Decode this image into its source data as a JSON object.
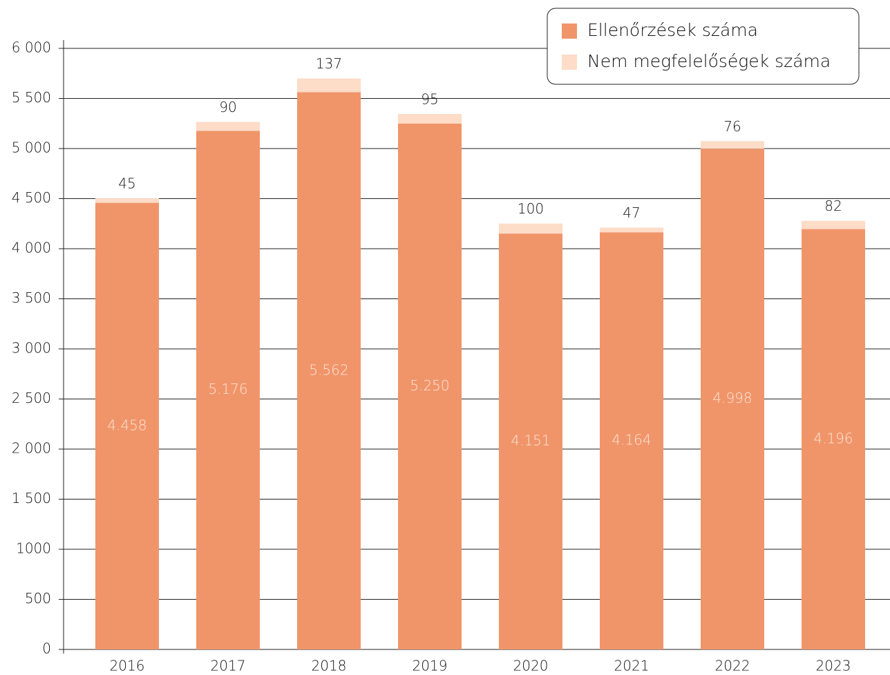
{
  "chart_data": {
    "type": "stacked_bar",
    "categories": [
      "2016",
      "2017",
      "2018",
      "2019",
      "2020",
      "2021",
      "2022",
      "2023"
    ],
    "series": [
      {
        "name": "Ellenőrzések száma",
        "color": "#f0956a",
        "values": [
          4458,
          5176,
          5562,
          5250,
          4151,
          4164,
          4998,
          4196
        ],
        "value_labels": [
          "4.458",
          "5.176",
          "5.562",
          "5.250",
          "4.151",
          "4.164",
          "4.998",
          "4.196"
        ]
      },
      {
        "name": "Nem megfelelőségek száma",
        "color": "#fddcc8",
        "values": [
          45,
          90,
          137,
          95,
          100,
          47,
          76,
          82
        ]
      }
    ],
    "ylim": [
      0,
      6000
    ],
    "yticks": [
      0,
      500,
      1000,
      {
        "value": 1500,
        "label": "1 500"
      },
      {
        "value": 2000,
        "label": "2 000"
      },
      {
        "value": 2500,
        "label": "2 500"
      },
      {
        "value": 3000,
        "label": "3 000"
      },
      {
        "value": 3500,
        "label": "3 500"
      },
      {
        "value": 4000,
        "label": "4 000"
      },
      {
        "value": 4500,
        "label": "4 500"
      },
      {
        "value": 5000,
        "label": "5 000"
      },
      {
        "value": 5500,
        "label": "5 500"
      },
      {
        "value": 6000,
        "label": "6 000"
      }
    ],
    "grid": true,
    "legend": "top-right"
  }
}
